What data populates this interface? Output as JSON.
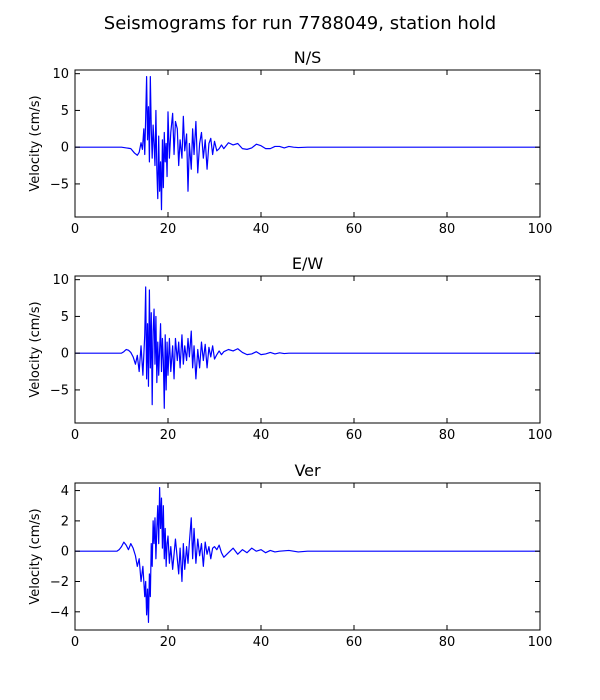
{
  "figure": {
    "suptitle": "Seismograms for run 7788049, station hold"
  },
  "chart_data": [
    {
      "type": "line",
      "title": "N/S",
      "xlabel": "",
      "ylabel": "Velocity (cm/s)",
      "xlim": [
        0,
        100
      ],
      "ylim": [
        -9.5,
        10.5
      ],
      "xticks": [
        0,
        20,
        40,
        60,
        80,
        100
      ],
      "xtick_labels": [
        "0",
        "20",
        "40",
        "60",
        "80",
        "100"
      ],
      "yticks": [
        -5,
        0,
        5,
        10
      ],
      "ytick_labels": [
        "−5",
        "0",
        "5",
        "10"
      ],
      "grid": false,
      "color": "#0000ff",
      "series": [
        {
          "x": [
            0,
            10,
            12,
            12.8,
            13.4,
            13.8,
            14.2,
            14.5,
            14.8,
            15.0,
            15.2,
            15.4,
            15.6,
            15.8,
            16.0,
            16.2,
            16.4,
            16.6,
            16.8,
            17.0,
            17.2,
            17.4,
            17.6,
            17.8,
            18.0,
            18.2,
            18.4,
            18.6,
            18.8,
            19.0,
            19.2,
            19.4,
            19.6,
            19.8,
            20.0,
            20.3,
            20.6,
            21.0,
            21.3,
            21.6,
            22.0,
            22.3,
            22.6,
            23.0,
            23.3,
            23.6,
            24.0,
            24.3,
            24.6,
            25.0,
            25.3,
            25.6,
            26.0,
            26.4,
            26.8,
            27.2,
            27.6,
            28.0,
            28.4,
            28.8,
            29.2,
            29.6,
            30.0,
            30.5,
            31.0,
            31.5,
            32.0,
            33.0,
            34.0,
            35.0,
            36.0,
            37.0,
            38.0,
            39.0,
            40.0,
            41.0,
            42.0,
            43.0,
            44.0,
            45.0,
            46.0,
            47.0,
            48.0,
            50.0,
            60.0,
            70.0,
            80.0,
            90.0,
            100.0
          ],
          "y": [
            0,
            0,
            -0.2,
            -0.8,
            -1.1,
            -0.7,
            0.6,
            -0.3,
            2.5,
            -1.0,
            4.0,
            9.6,
            1.0,
            5.5,
            -2.0,
            9.6,
            2.5,
            -1.5,
            3.0,
            0.5,
            -2.5,
            5.0,
            -3.0,
            -7.0,
            1.5,
            -6.0,
            -2.0,
            -8.5,
            1.0,
            -5.5,
            2.0,
            -2.0,
            0.5,
            -4.0,
            4.8,
            -1.5,
            2.0,
            4.6,
            -1.0,
            3.5,
            2.5,
            -2.5,
            1.0,
            -1.5,
            4.2,
            -0.5,
            1.8,
            -6.0,
            0.5,
            -3.0,
            2.5,
            -1.0,
            3.5,
            -3.5,
            0.5,
            2.0,
            -1.5,
            1.0,
            -3.0,
            0.5,
            1.2,
            -1.0,
            0.8,
            -0.5,
            -0.2,
            0.3,
            -0.2,
            0.6,
            0.3,
            0.5,
            -0.2,
            -0.3,
            -0.1,
            0.4,
            0.2,
            -0.2,
            -0.2,
            0.1,
            0.1,
            -0.1,
            0.1,
            0.0,
            -0.05,
            0.0,
            0.0,
            0.0,
            0.0,
            0.0,
            0.0
          ]
        }
      ]
    },
    {
      "type": "line",
      "title": "E/W",
      "xlabel": "",
      "ylabel": "Velocity (cm/s)",
      "xlim": [
        0,
        100
      ],
      "ylim": [
        -9.5,
        10.5
      ],
      "xticks": [
        0,
        20,
        40,
        60,
        80,
        100
      ],
      "xtick_labels": [
        "0",
        "20",
        "40",
        "60",
        "80",
        "100"
      ],
      "yticks": [
        -5,
        0,
        5,
        10
      ],
      "ytick_labels": [
        "−5",
        "0",
        "5",
        "10"
      ],
      "grid": false,
      "color": "#0000ff",
      "series": [
        {
          "x": [
            0,
            10,
            10.5,
            11.0,
            11.5,
            12.0,
            12.5,
            13.0,
            13.4,
            13.8,
            14.2,
            14.6,
            15.0,
            15.2,
            15.4,
            15.6,
            15.8,
            16.0,
            16.2,
            16.4,
            16.6,
            16.8,
            17.0,
            17.2,
            17.4,
            17.6,
            17.8,
            18.0,
            18.2,
            18.4,
            18.6,
            18.8,
            19.0,
            19.2,
            19.4,
            19.6,
            19.8,
            20.0,
            20.3,
            20.6,
            21.0,
            21.3,
            21.6,
            22.0,
            22.3,
            22.6,
            23.0,
            23.3,
            23.6,
            24.0,
            24.3,
            24.6,
            25.0,
            25.3,
            25.6,
            26.0,
            26.4,
            26.8,
            27.2,
            27.6,
            28.0,
            28.4,
            28.8,
            29.2,
            29.6,
            30.0,
            30.5,
            31.0,
            31.5,
            32.0,
            33.0,
            34.0,
            35.0,
            36.0,
            37.0,
            38.0,
            39.0,
            40.0,
            41.0,
            42.0,
            43.0,
            44.0,
            45.0,
            46.0,
            48.0,
            50.0,
            60.0,
            70.0,
            80.0,
            90.0,
            100.0
          ],
          "y": [
            0,
            0,
            0.2,
            0.5,
            0.4,
            0.1,
            -0.5,
            -1.5,
            -0.3,
            -2.5,
            1.0,
            -3.0,
            2.5,
            9.0,
            -3.5,
            4.0,
            -4.5,
            8.6,
            -2.0,
            5.5,
            -7.0,
            3.0,
            6.0,
            -1.5,
            5.0,
            -4.0,
            1.5,
            -3.0,
            0.5,
            4.0,
            -2.5,
            2.0,
            -1.0,
            -7.5,
            2.5,
            -5.0,
            1.5,
            -3.0,
            2.0,
            -2.5,
            1.0,
            -3.5,
            2.0,
            -1.0,
            1.5,
            -2.0,
            2.5,
            -1.5,
            1.0,
            -1.0,
            2.0,
            -0.5,
            3.0,
            -2.0,
            1.0,
            -3.5,
            0.5,
            -2.0,
            1.5,
            -1.0,
            1.2,
            -2.0,
            0.8,
            -0.5,
            1.0,
            -0.8,
            -0.2,
            0.3,
            -0.2,
            0.2,
            0.5,
            0.3,
            0.6,
            0.1,
            -0.2,
            -0.1,
            0.2,
            -0.2,
            -0.1,
            0.1,
            -0.1,
            0.05,
            -0.05,
            0.0,
            0.0,
            0.0,
            0.0,
            0.0,
            0.0,
            0.0,
            0.0
          ]
        }
      ]
    },
    {
      "type": "line",
      "title": "Ver",
      "xlabel": "",
      "ylabel": "Velocity (cm/s)",
      "xlim": [
        0,
        100
      ],
      "ylim": [
        -5.2,
        4.5
      ],
      "xticks": [
        0,
        20,
        40,
        60,
        80,
        100
      ],
      "xtick_labels": [
        "0",
        "20",
        "40",
        "60",
        "80",
        "100"
      ],
      "yticks": [
        -4,
        -2,
        0,
        2,
        4
      ],
      "ytick_labels": [
        "−4",
        "−2",
        "0",
        "2",
        "4"
      ],
      "grid": false,
      "color": "#0000ff",
      "series": [
        {
          "x": [
            0,
            9.0,
            9.5,
            10.0,
            10.5,
            11.0,
            11.5,
            12.0,
            12.5,
            13.0,
            13.4,
            13.8,
            14.2,
            14.6,
            15.0,
            15.2,
            15.4,
            15.6,
            15.8,
            16.0,
            16.2,
            16.4,
            16.6,
            16.8,
            17.0,
            17.2,
            17.4,
            17.6,
            17.8,
            18.0,
            18.2,
            18.4,
            18.6,
            18.8,
            19.0,
            19.2,
            19.4,
            19.6,
            19.8,
            20.0,
            20.3,
            20.6,
            21.0,
            21.3,
            21.6,
            22.0,
            22.3,
            22.6,
            23.0,
            23.3,
            23.6,
            24.0,
            24.3,
            24.6,
            25.0,
            25.3,
            25.6,
            26.0,
            26.4,
            26.8,
            27.2,
            27.6,
            28.0,
            28.4,
            28.8,
            29.2,
            29.6,
            30.0,
            30.5,
            31.0,
            31.5,
            32.0,
            33.0,
            34.0,
            35.0,
            36.0,
            37.0,
            38.0,
            39.0,
            40.0,
            41.0,
            42.0,
            43.0,
            44.0,
            46.0,
            48.0,
            50.0,
            60.0,
            70.0,
            80.0,
            90.0,
            100.0
          ],
          "y": [
            0,
            0,
            0.1,
            0.3,
            0.6,
            0.4,
            0.1,
            0.5,
            0.2,
            -0.3,
            -1.0,
            -0.5,
            -2.0,
            -1.0,
            -3.0,
            -2.0,
            -4.2,
            -2.5,
            -4.7,
            -1.5,
            -3.0,
            0.5,
            -1.0,
            2.0,
            0.5,
            2.2,
            -0.5,
            1.5,
            3.0,
            0.5,
            4.2,
            1.5,
            3.5,
            0.2,
            3.0,
            -0.5,
            1.5,
            -1.0,
            0.5,
            1.0,
            -0.8,
            0.3,
            -1.2,
            -0.2,
            0.8,
            -0.5,
            -1.5,
            0.2,
            -2.0,
            0.5,
            -1.2,
            0.3,
            -0.8,
            0.6,
            2.2,
            -0.5,
            1.5,
            -0.8,
            0.8,
            -0.3,
            0.5,
            -1.0,
            0.6,
            -0.2,
            0.3,
            -0.5,
            0.2,
            0.3,
            0.1,
            0.4,
            -0.1,
            -0.4,
            -0.1,
            0.2,
            -0.2,
            0.1,
            -0.1,
            0.2,
            0.0,
            0.1,
            -0.1,
            0.05,
            -0.05,
            0.0,
            0.05,
            -0.05,
            0.0,
            0.0,
            0.0,
            0.0,
            0.0,
            0.0
          ]
        }
      ]
    }
  ]
}
